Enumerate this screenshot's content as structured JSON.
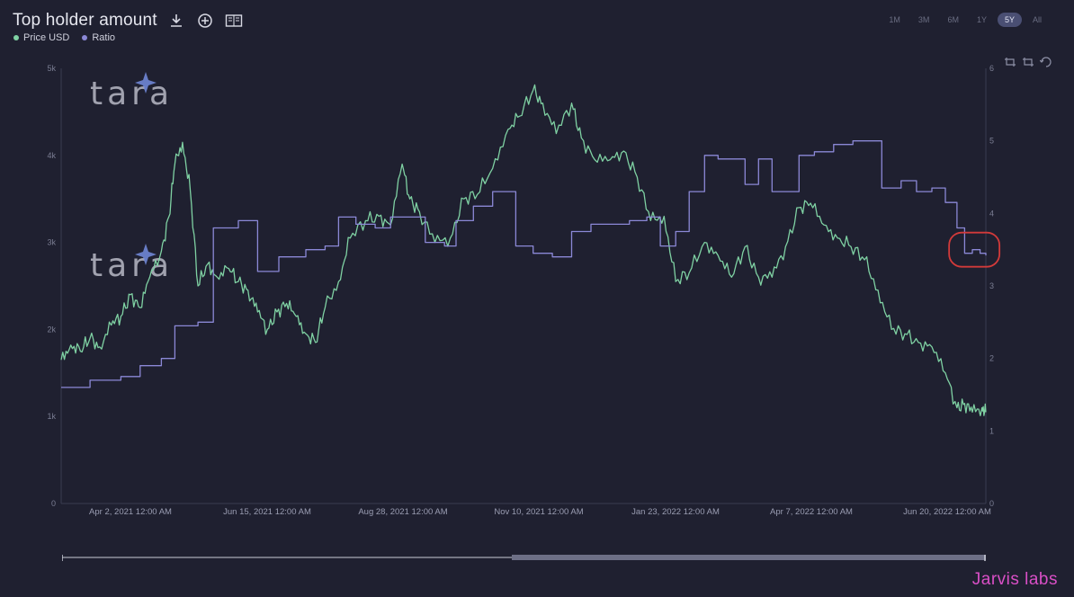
{
  "header": {
    "title": "Top holder amount",
    "icons": [
      "download-icon",
      "plus-circle-icon",
      "book-icon"
    ]
  },
  "legend": [
    {
      "label": "Price USD",
      "color": "#7fd1a3"
    },
    {
      "label": "Ratio",
      "color": "#8b88d6"
    }
  ],
  "ranges": {
    "items": [
      "1M",
      "3M",
      "6M",
      "1Y",
      "5Y",
      "All"
    ],
    "active": "5Y"
  },
  "zoom_tools": [
    "zoom-area-icon",
    "zoom-back-icon",
    "restore-icon"
  ],
  "watermark": {
    "text": "tara"
  },
  "brand": {
    "text": "Jarvis labs"
  },
  "colors": {
    "price": "#7fd1a3",
    "ratio": "#8b88d6",
    "highlight": "#d23a3a"
  },
  "chart_data": {
    "type": "line",
    "x_ticks": [
      "Apr 2, 2021 12:00 AM",
      "Jun 15, 2021 12:00 AM",
      "Aug 28, 2021 12:00 AM",
      "Nov 10, 2021 12:00 AM",
      "Jan 23, 2022 12:00 AM",
      "Apr 7, 2022 12:00 AM",
      "Jun 20, 2022 12:00 AM"
    ],
    "y_left": {
      "ticks": [
        "0",
        "1k",
        "2k",
        "3k",
        "4k",
        "5k"
      ],
      "lim": [
        0,
        5000
      ]
    },
    "y_right": {
      "ticks": [
        "0",
        "1",
        "2",
        "3",
        "4",
        "5",
        "6"
      ],
      "lim": [
        0,
        6
      ]
    },
    "x_range": [
      "2021-03-10",
      "2022-07-03"
    ],
    "series": [
      {
        "name": "Price USD",
        "axis": "left",
        "points": [
          [
            "2021-03-10",
            1650
          ],
          [
            "2021-03-15",
            1820
          ],
          [
            "2021-03-20",
            1750
          ],
          [
            "2021-03-25",
            1900
          ],
          [
            "2021-03-30",
            1800
          ],
          [
            "2021-04-05",
            2050
          ],
          [
            "2021-04-10",
            2150
          ],
          [
            "2021-04-15",
            2400
          ],
          [
            "2021-04-20",
            2250
          ],
          [
            "2021-04-25",
            2600
          ],
          [
            "2021-05-01",
            2900
          ],
          [
            "2021-05-05",
            3300
          ],
          [
            "2021-05-08",
            3900
          ],
          [
            "2021-05-12",
            4150
          ],
          [
            "2021-05-16",
            3600
          ],
          [
            "2021-05-20",
            2500
          ],
          [
            "2021-05-25",
            2750
          ],
          [
            "2021-05-30",
            2600
          ],
          [
            "2021-06-05",
            2700
          ],
          [
            "2021-06-10",
            2550
          ],
          [
            "2021-06-15",
            2450
          ],
          [
            "2021-06-20",
            2200
          ],
          [
            "2021-06-25",
            2000
          ],
          [
            "2021-06-30",
            2200
          ],
          [
            "2021-07-05",
            2300
          ],
          [
            "2021-07-10",
            2150
          ],
          [
            "2021-07-15",
            1950
          ],
          [
            "2021-07-20",
            1850
          ],
          [
            "2021-07-25",
            2250
          ],
          [
            "2021-08-01",
            2550
          ],
          [
            "2021-08-07",
            3050
          ],
          [
            "2021-08-15",
            3250
          ],
          [
            "2021-08-22",
            3300
          ],
          [
            "2021-08-28",
            3200
          ],
          [
            "2021-09-03",
            3900
          ],
          [
            "2021-09-07",
            3500
          ],
          [
            "2021-09-12",
            3350
          ],
          [
            "2021-09-20",
            3000
          ],
          [
            "2021-09-28",
            3050
          ],
          [
            "2021-10-05",
            3500
          ],
          [
            "2021-10-12",
            3550
          ],
          [
            "2021-10-20",
            3850
          ],
          [
            "2021-10-28",
            4300
          ],
          [
            "2021-11-03",
            4450
          ],
          [
            "2021-11-10",
            4750
          ],
          [
            "2021-11-15",
            4600
          ],
          [
            "2021-11-22",
            4250
          ],
          [
            "2021-11-30",
            4600
          ],
          [
            "2021-12-05",
            4200
          ],
          [
            "2021-12-12",
            3950
          ],
          [
            "2021-12-20",
            3950
          ],
          [
            "2021-12-27",
            4050
          ],
          [
            "2022-01-03",
            3750
          ],
          [
            "2022-01-10",
            3250
          ],
          [
            "2022-01-17",
            3300
          ],
          [
            "2022-01-23",
            2550
          ],
          [
            "2022-01-30",
            2650
          ],
          [
            "2022-02-07",
            3000
          ],
          [
            "2022-02-14",
            2850
          ],
          [
            "2022-02-21",
            2600
          ],
          [
            "2022-02-28",
            2950
          ],
          [
            "2022-03-07",
            2600
          ],
          [
            "2022-03-14",
            2600
          ],
          [
            "2022-03-21",
            2950
          ],
          [
            "2022-03-28",
            3400
          ],
          [
            "2022-04-03",
            3450
          ],
          [
            "2022-04-10",
            3200
          ],
          [
            "2022-04-17",
            3050
          ],
          [
            "2022-04-24",
            2950
          ],
          [
            "2022-05-01",
            2800
          ],
          [
            "2022-05-08",
            2450
          ],
          [
            "2022-05-15",
            2000
          ],
          [
            "2022-05-22",
            1950
          ],
          [
            "2022-05-29",
            1850
          ],
          [
            "2022-06-05",
            1800
          ],
          [
            "2022-06-12",
            1500
          ],
          [
            "2022-06-18",
            1100
          ],
          [
            "2022-06-22",
            1150
          ],
          [
            "2022-06-26",
            1050
          ],
          [
            "2022-07-01",
            1100
          ],
          [
            "2022-07-03",
            1050
          ]
        ]
      },
      {
        "name": "Ratio",
        "axis": "right",
        "points": [
          [
            "2021-03-10",
            1.6
          ],
          [
            "2021-03-25",
            1.7
          ],
          [
            "2021-04-10",
            1.75
          ],
          [
            "2021-04-20",
            1.9
          ],
          [
            "2021-05-01",
            2.0
          ],
          [
            "2021-05-08",
            2.45
          ],
          [
            "2021-05-20",
            2.5
          ],
          [
            "2021-05-28",
            3.8
          ],
          [
            "2021-06-10",
            3.9
          ],
          [
            "2021-06-20",
            3.2
          ],
          [
            "2021-07-01",
            3.4
          ],
          [
            "2021-07-15",
            3.5
          ],
          [
            "2021-07-25",
            3.55
          ],
          [
            "2021-08-01",
            3.95
          ],
          [
            "2021-08-10",
            3.85
          ],
          [
            "2021-08-20",
            3.8
          ],
          [
            "2021-08-28",
            3.95
          ],
          [
            "2021-09-05",
            3.95
          ],
          [
            "2021-09-15",
            3.6
          ],
          [
            "2021-09-25",
            3.55
          ],
          [
            "2021-10-01",
            3.9
          ],
          [
            "2021-10-10",
            4.1
          ],
          [
            "2021-10-20",
            4.3
          ],
          [
            "2021-11-01",
            3.55
          ],
          [
            "2021-11-10",
            3.45
          ],
          [
            "2021-11-20",
            3.4
          ],
          [
            "2021-11-30",
            3.75
          ],
          [
            "2021-12-10",
            3.85
          ],
          [
            "2021-12-20",
            3.85
          ],
          [
            "2021-12-30",
            3.9
          ],
          [
            "2022-01-08",
            3.95
          ],
          [
            "2022-01-15",
            3.55
          ],
          [
            "2022-01-23",
            3.75
          ],
          [
            "2022-01-30",
            4.3
          ],
          [
            "2022-02-07",
            4.8
          ],
          [
            "2022-02-14",
            4.75
          ],
          [
            "2022-02-28",
            4.4
          ],
          [
            "2022-03-07",
            4.75
          ],
          [
            "2022-03-14",
            4.3
          ],
          [
            "2022-03-21",
            4.3
          ],
          [
            "2022-03-28",
            4.8
          ],
          [
            "2022-04-05",
            4.85
          ],
          [
            "2022-04-15",
            4.95
          ],
          [
            "2022-04-25",
            5.0
          ],
          [
            "2022-05-05",
            5.0
          ],
          [
            "2022-05-10",
            4.35
          ],
          [
            "2022-05-20",
            4.45
          ],
          [
            "2022-05-28",
            4.3
          ],
          [
            "2022-06-05",
            4.35
          ],
          [
            "2022-06-12",
            4.15
          ],
          [
            "2022-06-18",
            3.8
          ],
          [
            "2022-06-22",
            3.45
          ],
          [
            "2022-06-26",
            3.5
          ],
          [
            "2022-06-30",
            3.45
          ],
          [
            "2022-07-03",
            3.42
          ]
        ]
      }
    ],
    "annotation": {
      "type": "circle",
      "target": "Ratio",
      "at": "2022-06-27"
    }
  }
}
